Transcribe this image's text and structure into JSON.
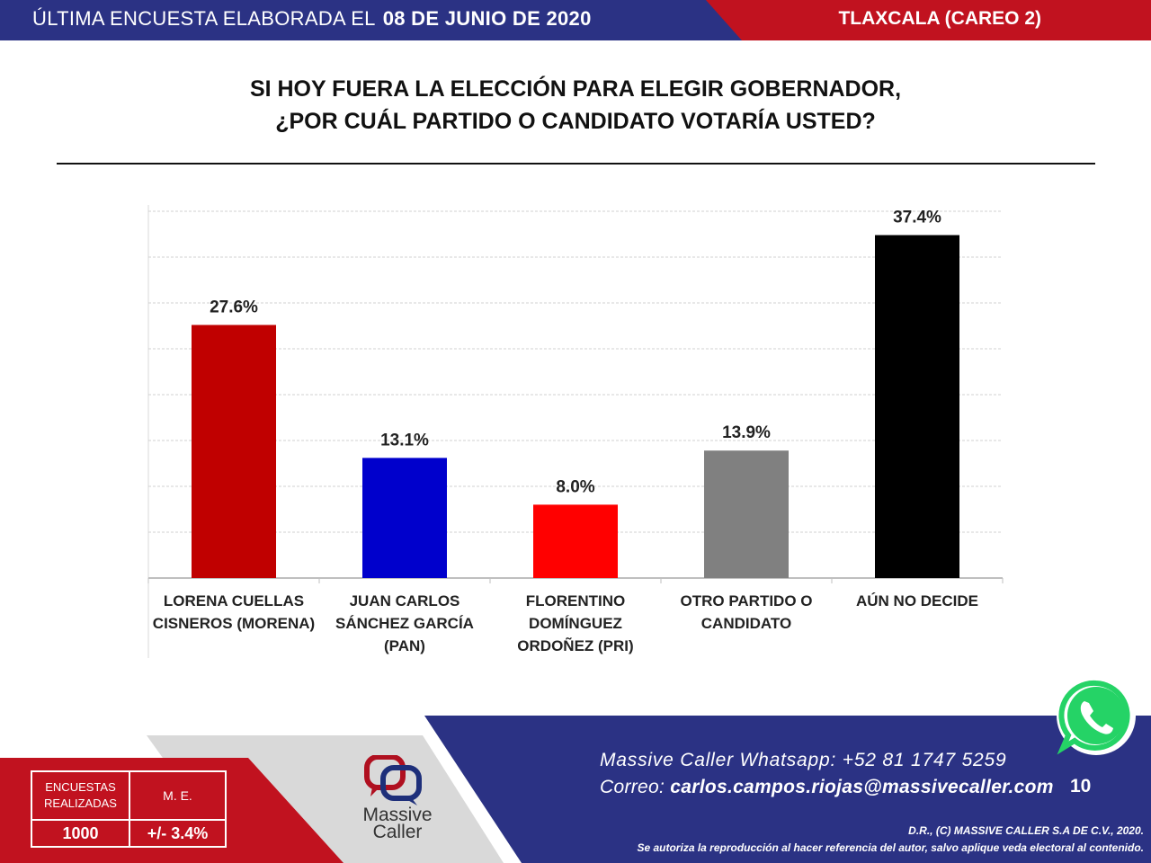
{
  "header": {
    "survey_prefix": "ÚLTIMA ENCUESTA ELABORADA EL",
    "survey_date": "08 DE JUNIO DE 2020",
    "region": "TLAXCALA (CAREO 2)"
  },
  "question": {
    "line1": "SI HOY FUERA LA ELECCIÓN PARA ELEGIR GOBERNADOR,",
    "line2": "¿POR CUÁL PARTIDO O CANDIDATO VOTARÍA USTED?"
  },
  "chart_data": {
    "type": "bar",
    "categories": [
      [
        "LORENA CUELLAS",
        "CISNEROS (MORENA)"
      ],
      [
        "JUAN CARLOS",
        "SÁNCHEZ GARCÍA",
        "(PAN)"
      ],
      [
        "FLORENTINO",
        "DOMÍNGUEZ",
        "ORDOÑEZ (PRI)"
      ],
      [
        "OTRO PARTIDO O",
        "CANDIDATO"
      ],
      [
        "AÚN NO DECIDE"
      ]
    ],
    "values": [
      27.6,
      13.1,
      8.0,
      13.9,
      37.4
    ],
    "data_labels": [
      "27.6%",
      "13.1%",
      "8.0%",
      "13.9%",
      "37.4%"
    ],
    "colors": [
      "#c00000",
      "#0000cc",
      "#ff0000",
      "#808080",
      "#000000"
    ],
    "ylim": [
      0,
      40
    ],
    "grid": true,
    "legend": "none"
  },
  "stats": {
    "surveys_label": "ENCUESTAS REALIZADAS",
    "surveys_value": "1000",
    "me_label": "M. E.",
    "me_value": "+/- 3.4%"
  },
  "brand": {
    "name_line1": "Massive",
    "name_line2": "Caller"
  },
  "contact": {
    "whatsapp_label": "Massive Caller Whatsapp:",
    "whatsapp_number": "+52 81 1747 5259",
    "email_label": "Correo:",
    "email": "carlos.campos.riojas@massivecaller.com"
  },
  "page_number": "10",
  "copyright": {
    "line1": "D.R., (C) MASSIVE CALLER S.A DE C.V., 2020.",
    "line2": "Se autoriza la reproducción al hacer referencia del autor, salvo aplique veda electoral al contenido."
  },
  "colors": {
    "header_blue": "#2b3284",
    "header_red": "#c1121f",
    "footer_blue": "#2b3284",
    "footer_red": "#c1121f",
    "whatsapp_green": "#25d366"
  }
}
